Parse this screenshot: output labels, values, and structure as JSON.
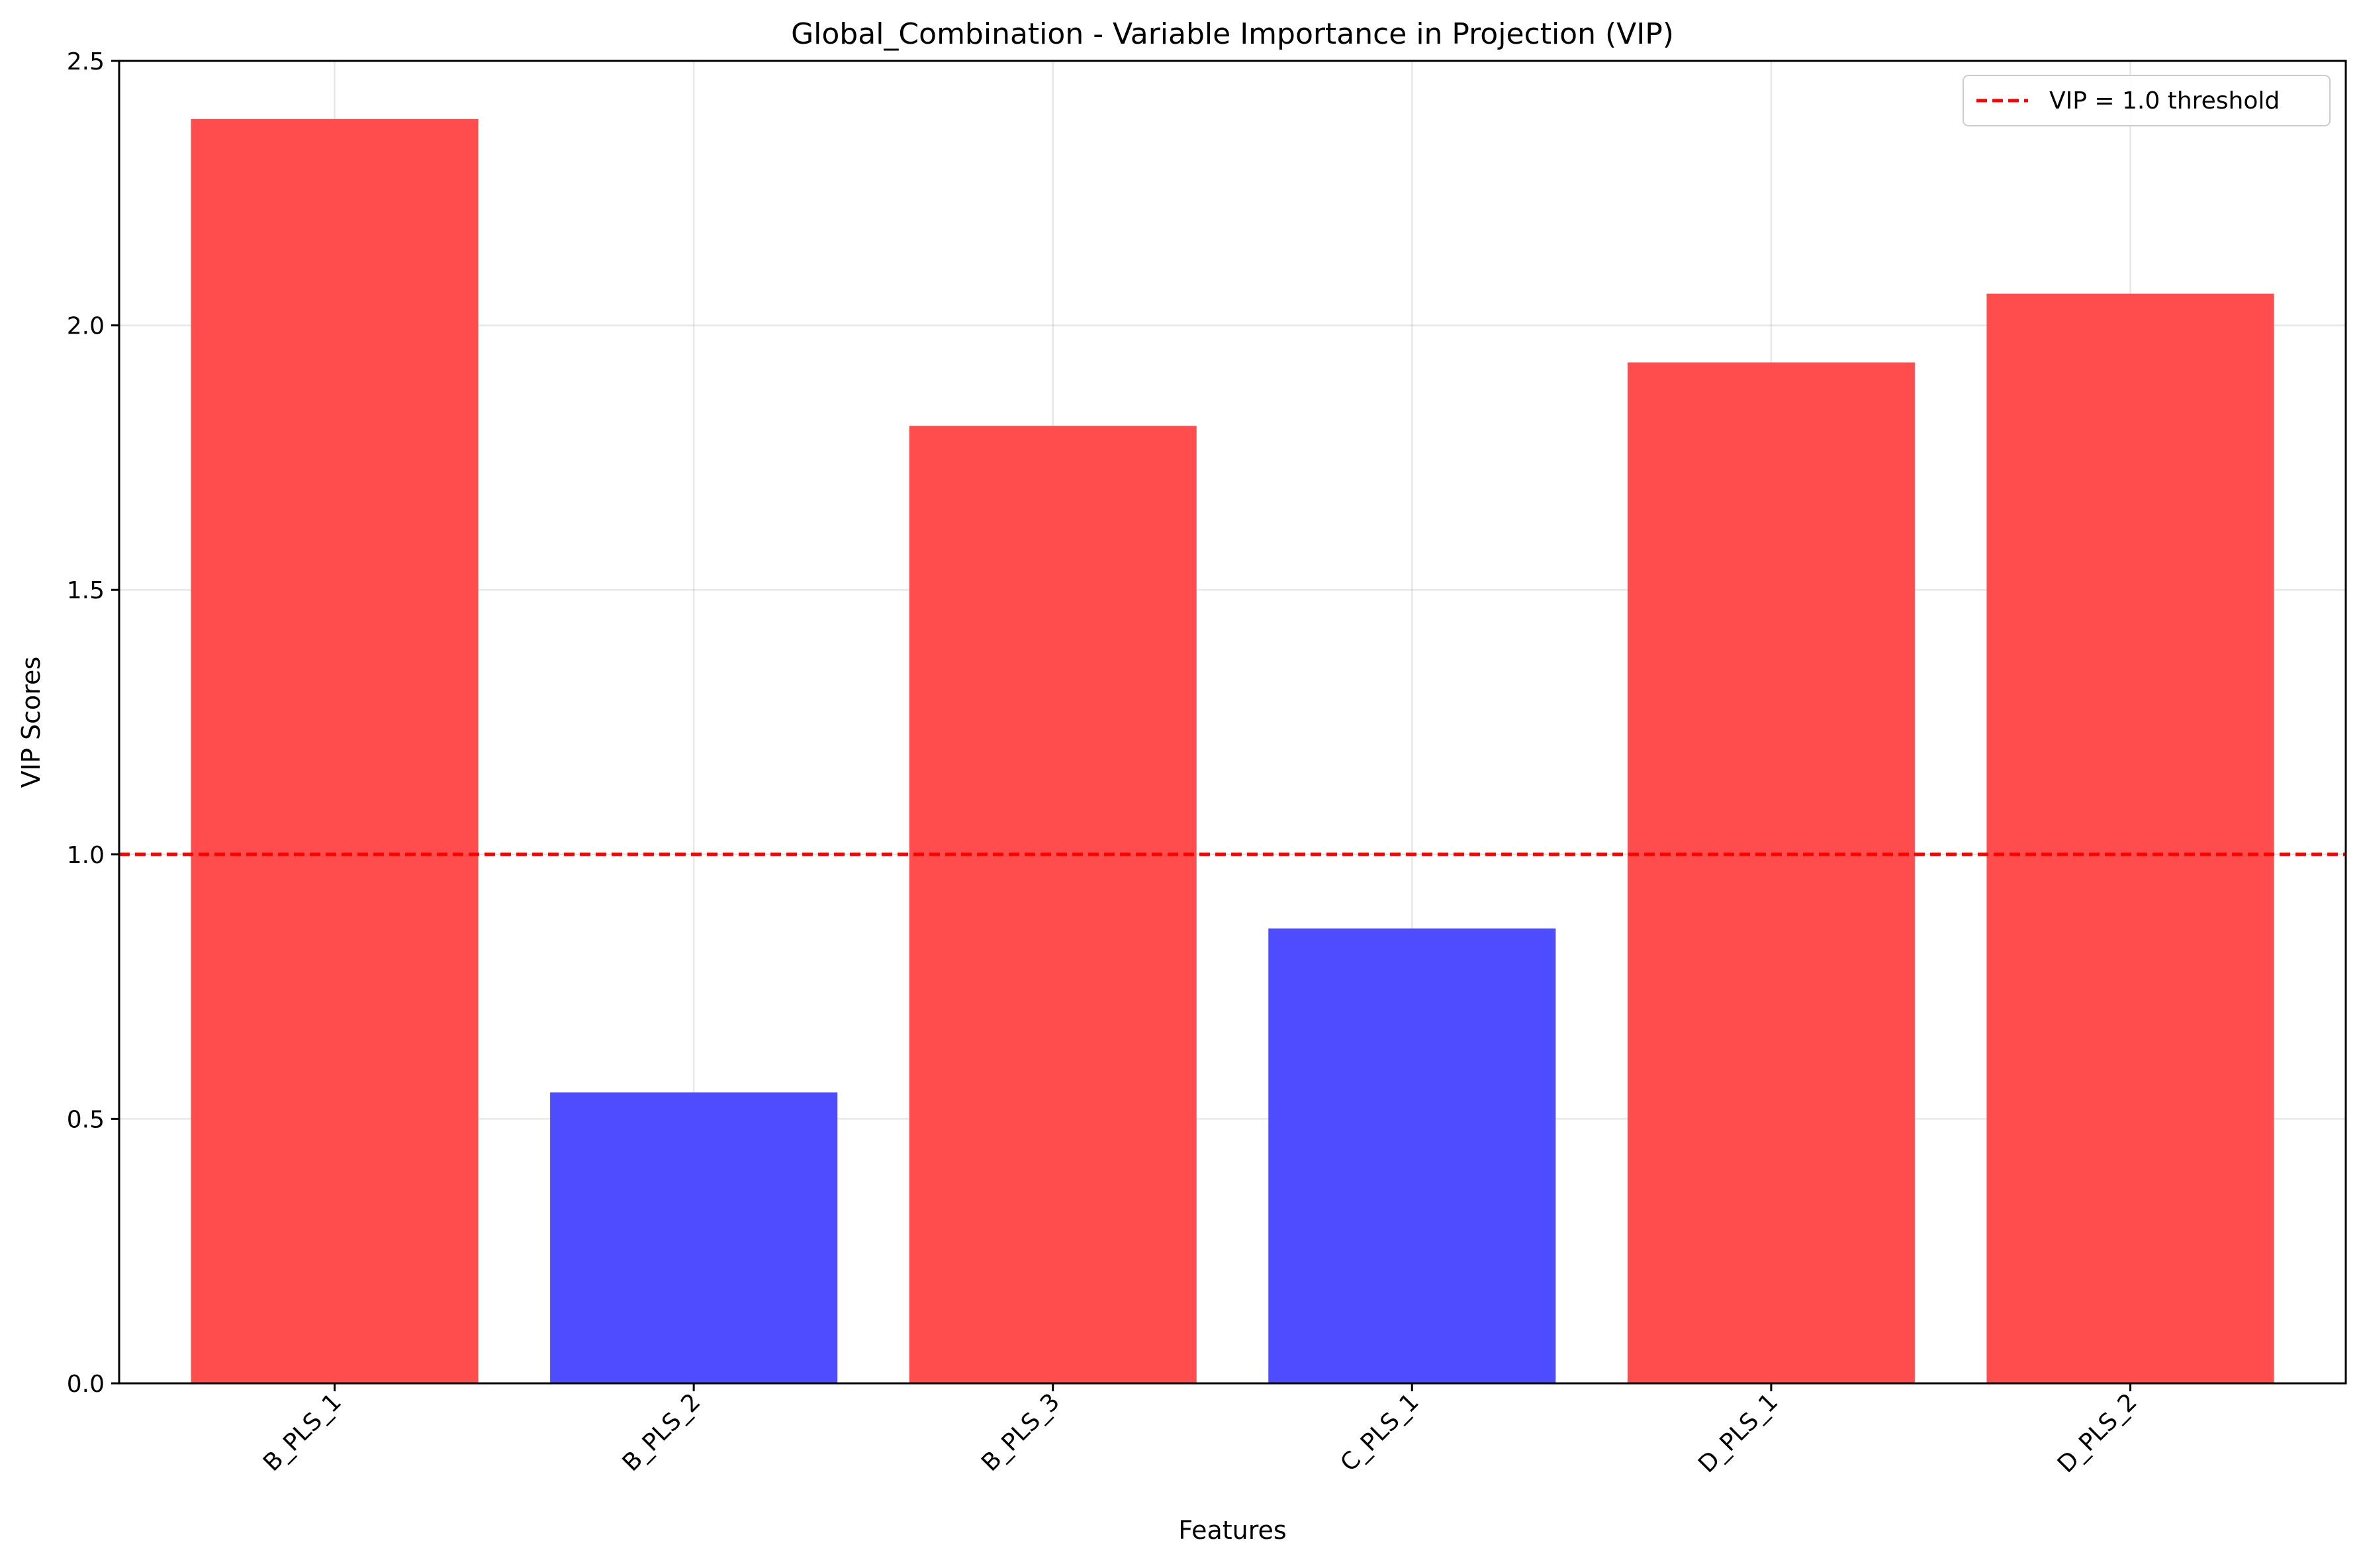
{
  "chart_data": {
    "type": "bar",
    "title": "Global_Combination - Variable Importance in Projection (VIP)",
    "xlabel": "Features",
    "ylabel": "VIP Scores",
    "categories": [
      "B_PLS_1",
      "B_PLS_2",
      "B_PLS_3",
      "C_PLS_1",
      "D_PLS_1",
      "D_PLS_2"
    ],
    "values": [
      2.39,
      0.55,
      1.81,
      0.86,
      1.93,
      2.06
    ],
    "ylim": [
      0,
      2.5
    ],
    "yticks": [
      0.0,
      0.5,
      1.0,
      1.5,
      2.0,
      2.5
    ],
    "ytick_labels": [
      "0.0",
      "0.5",
      "1.0",
      "1.5",
      "2.0",
      "2.5"
    ],
    "threshold": {
      "value": 1.0,
      "label": "VIP = 1.0 threshold",
      "color": "#ff0000",
      "style": "dashed"
    },
    "colors": {
      "above_threshold": "#ff4d4d",
      "below_threshold": "#4d4dff"
    },
    "grid": true,
    "legend_position": "top-right"
  }
}
